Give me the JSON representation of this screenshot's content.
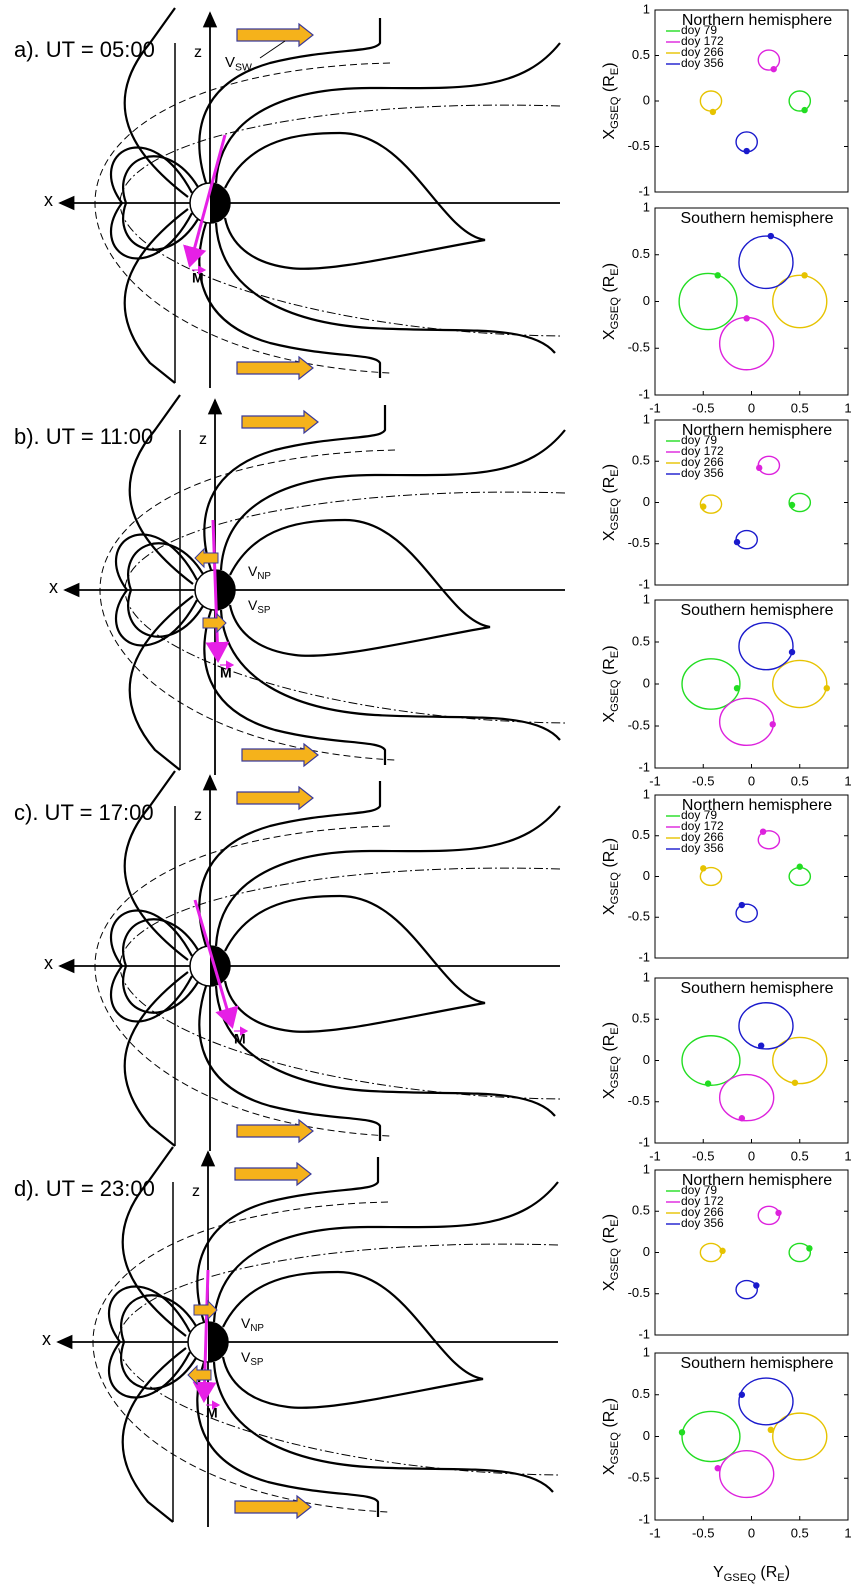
{
  "panels": [
    {
      "title": "a). UT = 05:00",
      "z": "z",
      "x": "x",
      "m": "M",
      "v_sw": [
        "V",
        "SW"
      ]
    },
    {
      "title": "b). UT = 11:00",
      "z": "z",
      "x": "x",
      "m": "M",
      "v_np": [
        "V",
        "NP"
      ],
      "v_sp": [
        "V",
        "SP"
      ]
    },
    {
      "title": "c). UT = 17:00",
      "z": "z",
      "x": "x",
      "m": "M"
    },
    {
      "title": "d). UT = 23:00",
      "z": "z",
      "x": "x",
      "m": "M",
      "v_np": [
        "V",
        "NP"
      ],
      "v_sp": [
        "V",
        "SP"
      ]
    }
  ],
  "chart_data": [
    {
      "type": "loop",
      "title": "Northern hemisphere",
      "xlim": [
        -1,
        1
      ],
      "ylim": [
        -1,
        1
      ],
      "yticks": [
        -1,
        -0.5,
        0,
        0.5,
        1
      ],
      "ylabel": [
        "X",
        "GSEQ",
        " (R",
        "E",
        ")"
      ],
      "series": [
        {
          "name": "doy 79",
          "color": "#22dd22",
          "center": [
            0.5,
            0
          ],
          "radius": 0.11,
          "dot": [
            0.55,
            -0.1
          ]
        },
        {
          "name": "doy 172",
          "color": "#dd22dd",
          "center": [
            0.18,
            0.45
          ],
          "radius": 0.11,
          "dot": [
            0.23,
            0.35
          ]
        },
        {
          "name": "doy 266",
          "color": "#e6c300",
          "center": [
            -0.42,
            0
          ],
          "radius": 0.11,
          "dot": [
            -0.4,
            -0.12
          ]
        },
        {
          "name": "doy 356",
          "color": "#1a1acc",
          "center": [
            -0.05,
            -0.45
          ],
          "radius": 0.11,
          "dot": [
            -0.05,
            -0.55
          ]
        }
      ]
    },
    {
      "type": "loop",
      "title": "Southern hemisphere",
      "xlim": [
        -1,
        1
      ],
      "ylim": [
        -1,
        1
      ],
      "yticks": [
        -1,
        -0.5,
        0,
        0.5,
        1
      ],
      "xticks": [
        -1,
        -0.5,
        0,
        0.5,
        1
      ],
      "ylabel": [
        "X",
        "GSEQ",
        " (R",
        "E",
        ")"
      ],
      "series": [
        {
          "color": "#22dd22",
          "center": [
            -0.45,
            0
          ],
          "radius": 0.3,
          "dot": [
            -0.35,
            0.28
          ]
        },
        {
          "color": "#dd22dd",
          "center": [
            -0.05,
            -0.45
          ],
          "radius": 0.28,
          "dot": [
            -0.05,
            -0.18
          ]
        },
        {
          "color": "#e6c300",
          "center": [
            0.5,
            0
          ],
          "radius": 0.28,
          "dot": [
            0.55,
            0.28
          ]
        },
        {
          "color": "#1a1acc",
          "center": [
            0.15,
            0.42
          ],
          "radius": 0.28,
          "dot": [
            0.2,
            0.7
          ]
        }
      ]
    },
    {
      "type": "loop",
      "title": "Northern hemisphere",
      "xlim": [
        -1,
        1
      ],
      "ylim": [
        -1,
        1
      ],
      "yticks": [
        -1,
        -0.5,
        0,
        0.5,
        1
      ],
      "ylabel": [
        "X",
        "GSEQ",
        " (R",
        "E",
        ")"
      ],
      "series": [
        {
          "name": "doy 79",
          "color": "#22dd22",
          "center": [
            0.5,
            0
          ],
          "radius": 0.11,
          "dot": [
            0.42,
            -0.03
          ]
        },
        {
          "name": "doy 172",
          "color": "#dd22dd",
          "center": [
            0.18,
            0.45
          ],
          "radius": 0.11,
          "dot": [
            0.08,
            0.42
          ]
        },
        {
          "name": "doy 266",
          "color": "#e6c300",
          "center": [
            -0.42,
            -0.02
          ],
          "radius": 0.11,
          "dot": [
            -0.5,
            -0.05
          ]
        },
        {
          "name": "doy 356",
          "color": "#1a1acc",
          "center": [
            -0.05,
            -0.45
          ],
          "radius": 0.11,
          "dot": [
            -0.15,
            -0.48
          ]
        }
      ]
    },
    {
      "type": "loop",
      "title": "Southern hemisphere",
      "xlim": [
        -1,
        1
      ],
      "ylim": [
        -1,
        1
      ],
      "yticks": [
        -1,
        -0.5,
        0,
        0.5,
        1
      ],
      "xticks": [
        -1,
        -0.5,
        0,
        0.5,
        1
      ],
      "ylabel": [
        "X",
        "GSEQ",
        " (R",
        "E",
        ")"
      ],
      "series": [
        {
          "color": "#22dd22",
          "center": [
            -0.42,
            0
          ],
          "radius": 0.3,
          "dot": [
            -0.15,
            -0.05
          ]
        },
        {
          "color": "#dd22dd",
          "center": [
            -0.05,
            -0.45
          ],
          "radius": 0.28,
          "dot": [
            0.22,
            -0.48
          ]
        },
        {
          "color": "#e6c300",
          "center": [
            0.5,
            0
          ],
          "radius": 0.28,
          "dot": [
            0.78,
            -0.05
          ]
        },
        {
          "color": "#1a1acc",
          "center": [
            0.15,
            0.45
          ],
          "radius": 0.28,
          "dot": [
            0.42,
            0.38
          ]
        }
      ]
    },
    {
      "type": "loop",
      "title": "Northern hemisphere",
      "xlim": [
        -1,
        1
      ],
      "ylim": [
        -1,
        1
      ],
      "yticks": [
        -1,
        -0.5,
        0,
        0.5,
        1
      ],
      "ylabel": [
        "X",
        "GSEQ",
        " (R",
        "E",
        ")"
      ],
      "series": [
        {
          "name": "doy 79",
          "color": "#22dd22",
          "center": [
            0.5,
            0
          ],
          "radius": 0.11,
          "dot": [
            0.5,
            0.12
          ]
        },
        {
          "name": "doy 172",
          "color": "#dd22dd",
          "center": [
            0.18,
            0.45
          ],
          "radius": 0.11,
          "dot": [
            0.12,
            0.55
          ]
        },
        {
          "name": "doy 266",
          "color": "#e6c300",
          "center": [
            -0.42,
            0
          ],
          "radius": 0.11,
          "dot": [
            -0.5,
            0.1
          ]
        },
        {
          "name": "doy 356",
          "color": "#1a1acc",
          "center": [
            -0.05,
            -0.45
          ],
          "radius": 0.11,
          "dot": [
            -0.1,
            -0.35
          ]
        }
      ]
    },
    {
      "type": "loop",
      "title": "Southern hemisphere",
      "xlim": [
        -1,
        1
      ],
      "ylim": [
        -1,
        1
      ],
      "yticks": [
        -1,
        -0.5,
        0,
        0.5,
        1
      ],
      "xticks": [
        -1,
        -0.5,
        0,
        0.5,
        1
      ],
      "ylabel": [
        "X",
        "GSEQ",
        " (R",
        "E",
        ")"
      ],
      "series": [
        {
          "color": "#22dd22",
          "center": [
            -0.42,
            0
          ],
          "radius": 0.3,
          "dot": [
            -0.45,
            -0.28
          ]
        },
        {
          "color": "#dd22dd",
          "center": [
            -0.05,
            -0.45
          ],
          "radius": 0.28,
          "dot": [
            -0.1,
            -0.7
          ]
        },
        {
          "color": "#e6c300",
          "center": [
            0.5,
            0
          ],
          "radius": 0.28,
          "dot": [
            0.45,
            -0.27
          ]
        },
        {
          "color": "#1a1acc",
          "center": [
            0.15,
            0.42
          ],
          "radius": 0.28,
          "dot": [
            0.1,
            0.18
          ]
        }
      ]
    },
    {
      "type": "loop",
      "title": "Northern hemisphere",
      "xlim": [
        -1,
        1
      ],
      "ylim": [
        -1,
        1
      ],
      "yticks": [
        -1,
        -0.5,
        0,
        0.5,
        1
      ],
      "ylabel": [
        "X",
        "GSEQ",
        " (R",
        "E",
        ")"
      ],
      "series": [
        {
          "name": "doy 79",
          "color": "#22dd22",
          "center": [
            0.5,
            0
          ],
          "radius": 0.11,
          "dot": [
            0.6,
            0.05
          ]
        },
        {
          "name": "doy 172",
          "color": "#dd22dd",
          "center": [
            0.18,
            0.45
          ],
          "radius": 0.11,
          "dot": [
            0.28,
            0.48
          ]
        },
        {
          "name": "doy 266",
          "color": "#e6c300",
          "center": [
            -0.42,
            0
          ],
          "radius": 0.11,
          "dot": [
            -0.3,
            0.02
          ]
        },
        {
          "name": "doy 356",
          "color": "#1a1acc",
          "center": [
            -0.05,
            -0.45
          ],
          "radius": 0.11,
          "dot": [
            0.05,
            -0.4
          ]
        }
      ]
    },
    {
      "type": "loop",
      "title": "Southern hemisphere",
      "xlim": [
        -1,
        1
      ],
      "ylim": [
        -1,
        1
      ],
      "yticks": [
        -1,
        -0.5,
        0,
        0.5,
        1
      ],
      "xticks": [
        -1,
        -0.5,
        0,
        0.5,
        1
      ],
      "ylabel": [
        "X",
        "GSEQ",
        " (R",
        "E",
        ")"
      ],
      "xlabel": [
        "Y",
        "GSEQ",
        " (R",
        "E",
        ")"
      ],
      "series": [
        {
          "color": "#22dd22",
          "center": [
            -0.42,
            0
          ],
          "radius": 0.3,
          "dot": [
            -0.72,
            0.05
          ]
        },
        {
          "color": "#dd22dd",
          "center": [
            -0.05,
            -0.45
          ],
          "radius": 0.28,
          "dot": [
            -0.35,
            -0.38
          ]
        },
        {
          "color": "#e6c300",
          "center": [
            0.5,
            0
          ],
          "radius": 0.28,
          "dot": [
            0.2,
            0.08
          ]
        },
        {
          "color": "#1a1acc",
          "center": [
            0.15,
            0.42
          ],
          "radius": 0.28,
          "dot": [
            -0.1,
            0.5
          ]
        }
      ]
    }
  ]
}
